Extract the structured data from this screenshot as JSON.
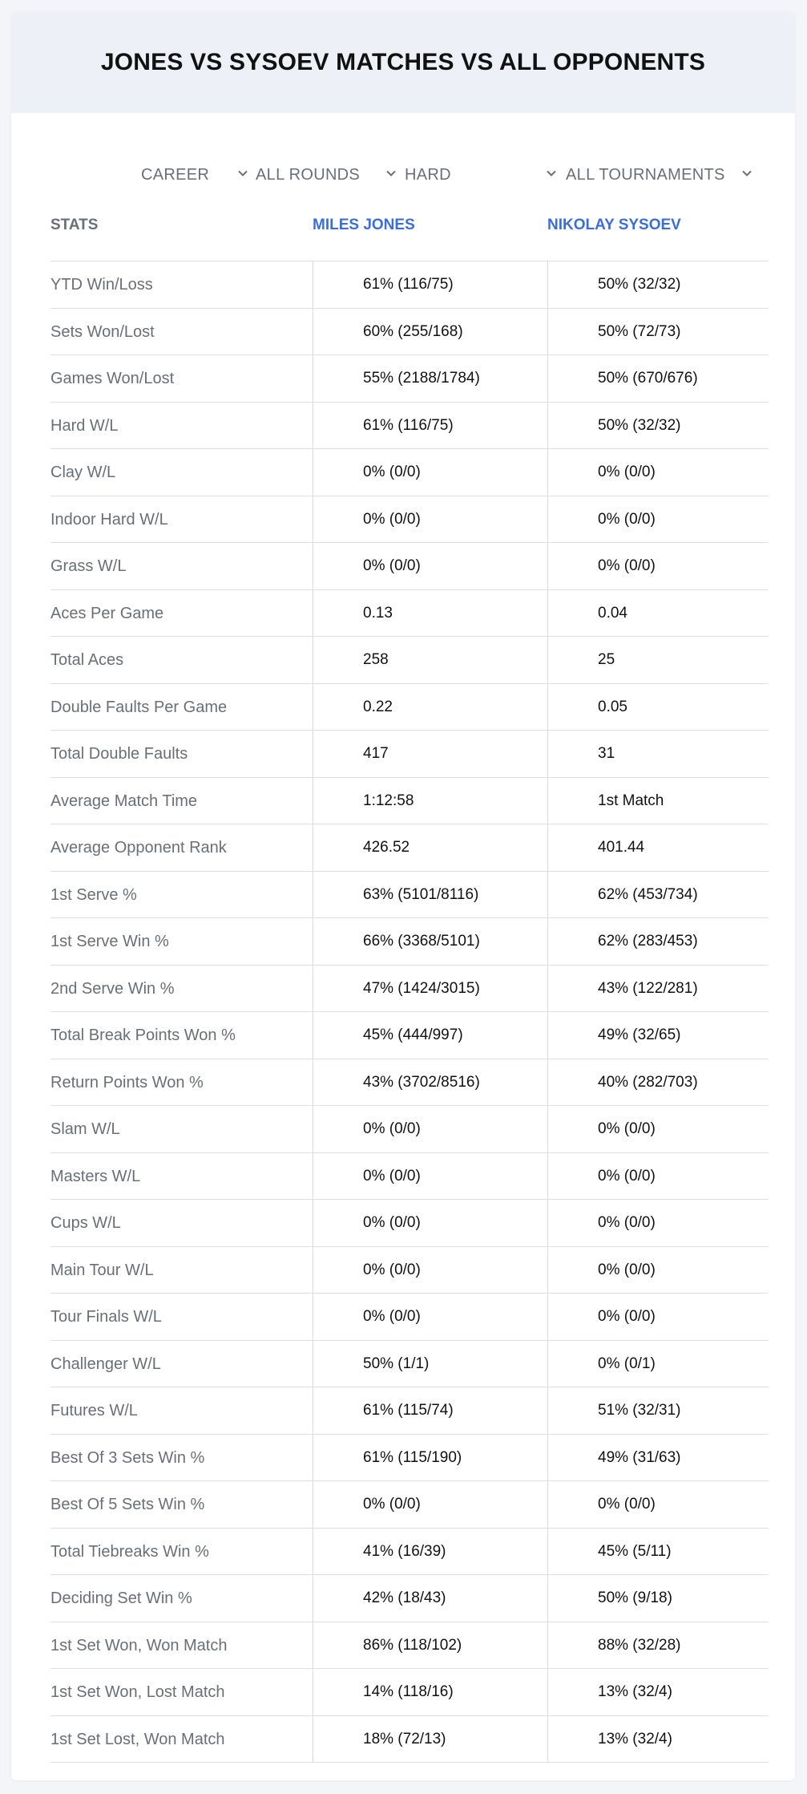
{
  "title": "JONES VS SYSOEV MATCHES VS ALL OPPONENTS",
  "filters": [
    {
      "label": "CAREER"
    },
    {
      "label": "ALL ROUNDS"
    },
    {
      "label": "HARD"
    },
    {
      "label": "ALL TOURNAMENTS"
    }
  ],
  "header": {
    "stats_label": "STATS",
    "player1": "MILES JONES",
    "player2": "NIKOLAY SYSOEV"
  },
  "colors": {
    "accent": "#3a6fd8",
    "header_bg": "#edf1f7",
    "label_text": "#6a6f77",
    "value_text": "#111111"
  },
  "rows": [
    {
      "label": "YTD Win/Loss",
      "p1": "61% (116/75)",
      "p2": "50% (32/32)"
    },
    {
      "label": "Sets Won/Lost",
      "p1": "60% (255/168)",
      "p2": "50% (72/73)"
    },
    {
      "label": "Games Won/Lost",
      "p1": "55% (2188/1784)",
      "p2": "50% (670/676)"
    },
    {
      "label": "Hard W/L",
      "p1": "61% (116/75)",
      "p2": "50% (32/32)"
    },
    {
      "label": "Clay W/L",
      "p1": "0% (0/0)",
      "p2": "0% (0/0)"
    },
    {
      "label": "Indoor Hard W/L",
      "p1": "0% (0/0)",
      "p2": "0% (0/0)"
    },
    {
      "label": "Grass W/L",
      "p1": "0% (0/0)",
      "p2": "0% (0/0)"
    },
    {
      "label": "Aces Per Game",
      "p1": "0.13",
      "p2": "0.04"
    },
    {
      "label": "Total Aces",
      "p1": "258",
      "p2": "25"
    },
    {
      "label": "Double Faults Per Game",
      "p1": "0.22",
      "p2": "0.05"
    },
    {
      "label": "Total Double Faults",
      "p1": "417",
      "p2": "31"
    },
    {
      "label": "Average Match Time",
      "p1": "1:12:58",
      "p2": "1st Match"
    },
    {
      "label": "Average Opponent Rank",
      "p1": "426.52",
      "p2": "401.44"
    },
    {
      "label": "1st Serve %",
      "p1": "63% (5101/8116)",
      "p2": "62% (453/734)"
    },
    {
      "label": "1st Serve Win %",
      "p1": "66% (3368/5101)",
      "p2": "62% (283/453)"
    },
    {
      "label": "2nd Serve Win %",
      "p1": "47% (1424/3015)",
      "p2": "43% (122/281)"
    },
    {
      "label": "Total Break Points Won %",
      "p1": "45% (444/997)",
      "p2": "49% (32/65)"
    },
    {
      "label": "Return Points Won %",
      "p1": "43% (3702/8516)",
      "p2": "40% (282/703)"
    },
    {
      "label": "Slam W/L",
      "p1": "0% (0/0)",
      "p2": "0% (0/0)"
    },
    {
      "label": "Masters W/L",
      "p1": "0% (0/0)",
      "p2": "0% (0/0)"
    },
    {
      "label": "Cups W/L",
      "p1": "0% (0/0)",
      "p2": "0% (0/0)"
    },
    {
      "label": "Main Tour W/L",
      "p1": "0% (0/0)",
      "p2": "0% (0/0)"
    },
    {
      "label": "Tour Finals W/L",
      "p1": "0% (0/0)",
      "p2": "0% (0/0)"
    },
    {
      "label": "Challenger W/L",
      "p1": "50% (1/1)",
      "p2": "0% (0/1)"
    },
    {
      "label": "Futures W/L",
      "p1": "61% (115/74)",
      "p2": "51% (32/31)"
    },
    {
      "label": "Best Of 3 Sets Win %",
      "p1": "61% (115/190)",
      "p2": "49% (31/63)"
    },
    {
      "label": "Best Of 5 Sets Win %",
      "p1": "0% (0/0)",
      "p2": "0% (0/0)"
    },
    {
      "label": "Total Tiebreaks Win %",
      "p1": "41% (16/39)",
      "p2": "45% (5/11)"
    },
    {
      "label": "Deciding Set Win %",
      "p1": "42% (18/43)",
      "p2": "50% (9/18)"
    },
    {
      "label": "1st Set Won, Won Match",
      "p1": "86% (118/102)",
      "p2": "88% (32/28)"
    },
    {
      "label": "1st Set Won, Lost Match",
      "p1": "14% (118/16)",
      "p2": "13% (32/4)"
    },
    {
      "label": "1st Set Lost, Won Match",
      "p1": "18% (72/13)",
      "p2": "13% (32/4)"
    }
  ]
}
